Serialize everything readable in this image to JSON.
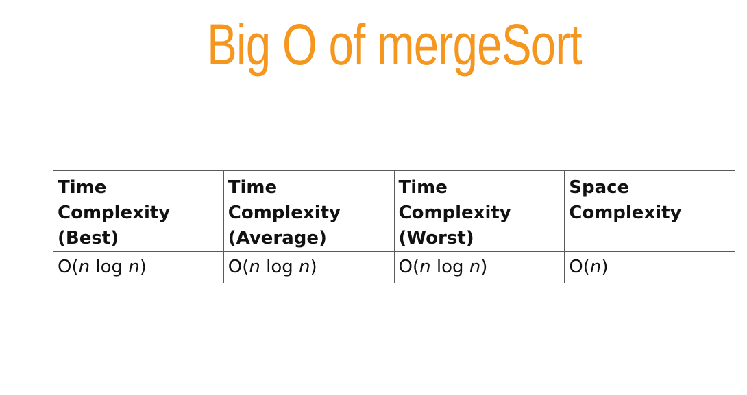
{
  "title": "Big O of mergeSort",
  "table": {
    "headers": [
      {
        "lines": [
          "Time",
          "Complexity",
          "(Best)"
        ]
      },
      {
        "lines": [
          "Time",
          "Complexity",
          "(Average)"
        ]
      },
      {
        "lines": [
          "Time",
          "Complexity",
          "(Worst)"
        ]
      },
      {
        "lines": [
          "Space",
          "Complexity"
        ]
      }
    ],
    "values": [
      {
        "prefix": "O(",
        "var1": "n",
        "middle": " log ",
        "var2": "n",
        "suffix": ")"
      },
      {
        "prefix": "O(",
        "var1": "n",
        "middle": " log ",
        "var2": "n",
        "suffix": ")"
      },
      {
        "prefix": "O(",
        "var1": "n",
        "middle": " log ",
        "var2": "n",
        "suffix": ")"
      },
      {
        "prefix": "O(",
        "var1": "n",
        "middle": "",
        "var2": "",
        "suffix": ")"
      }
    ]
  },
  "colors": {
    "title": "#f5961e",
    "border": "#5a5a5a",
    "text": "#111111"
  }
}
